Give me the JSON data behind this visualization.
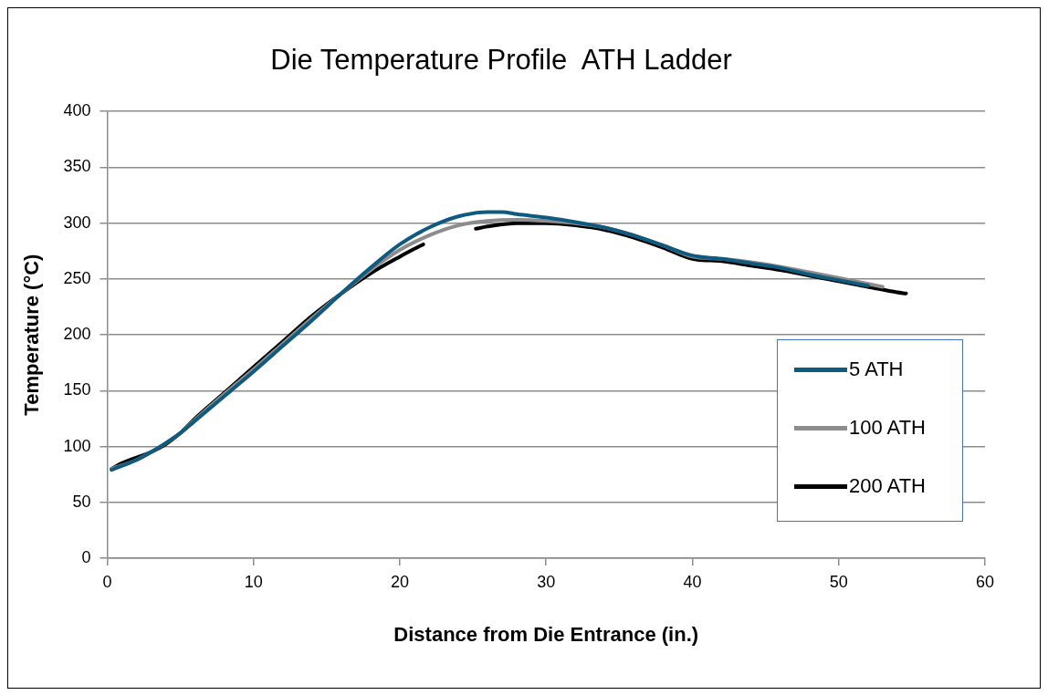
{
  "chart_data": {
    "type": "line",
    "title": "Die Temperature Profile  ATH Ladder",
    "xlabel": "Distance from Die Entrance (in.)",
    "ylabel": "Temperature (°C)",
    "xlim": [
      0,
      60
    ],
    "xticks": [
      0,
      10,
      20,
      30,
      40,
      50,
      60
    ],
    "ylim": [
      0,
      400
    ],
    "yticks": [
      0,
      50,
      100,
      150,
      200,
      250,
      300,
      350,
      400
    ],
    "grid": "y",
    "legend": "right",
    "marker": "none",
    "line_style": "solid",
    "series": [
      {
        "name": "5 ATH",
        "color": "#0f5a7f",
        "x": [
          0.3,
          2,
          3,
          4,
          5,
          6,
          8,
          10,
          12,
          14,
          16,
          18,
          20,
          22,
          24,
          26,
          27,
          28,
          30,
          32,
          34,
          36,
          38,
          40,
          42,
          44,
          46,
          48,
          50,
          52
        ],
        "values": [
          79,
          88,
          95,
          103,
          112,
          123,
          145,
          167,
          190,
          213,
          237,
          260,
          281,
          296,
          306,
          310,
          310,
          308,
          305,
          301,
          296,
          289,
          280,
          271,
          268,
          264,
          260,
          254,
          249,
          244
        ]
      },
      {
        "name": "100 ATH",
        "color": "#8c8c8c",
        "x": [
          0.3,
          2,
          3,
          4,
          5,
          6,
          8,
          10,
          12,
          14,
          16,
          18,
          20,
          22,
          24,
          26,
          28,
          30,
          32,
          34,
          36,
          38,
          40,
          42,
          44,
          46,
          48,
          50,
          53
        ],
        "values": [
          80,
          88,
          95,
          103,
          112,
          124,
          147,
          169,
          192,
          215,
          237,
          258,
          276,
          289,
          298,
          302,
          303,
          302,
          300,
          296,
          289,
          280,
          270,
          268,
          265,
          261,
          256,
          251,
          243
        ]
      },
      {
        "name": "200 ATH",
        "color": "#000000",
        "x": [
          0.3,
          1,
          3,
          4,
          5,
          6,
          8,
          10,
          12,
          14,
          16,
          18,
          20,
          21,
          21.6,
          23,
          25.2,
          26,
          28,
          30,
          32,
          34,
          36,
          38,
          40,
          42,
          44,
          46,
          48,
          50,
          52,
          54,
          54.6
        ],
        "values": [
          80,
          85,
          95,
          102,
          112,
          125,
          148,
          171,
          194,
          217,
          237,
          255,
          270,
          277,
          281,
          null,
          295,
          297,
          300,
          300,
          298,
          294,
          287,
          278,
          268,
          266,
          262,
          258,
          253,
          248,
          243,
          238,
          237
        ]
      }
    ]
  }
}
